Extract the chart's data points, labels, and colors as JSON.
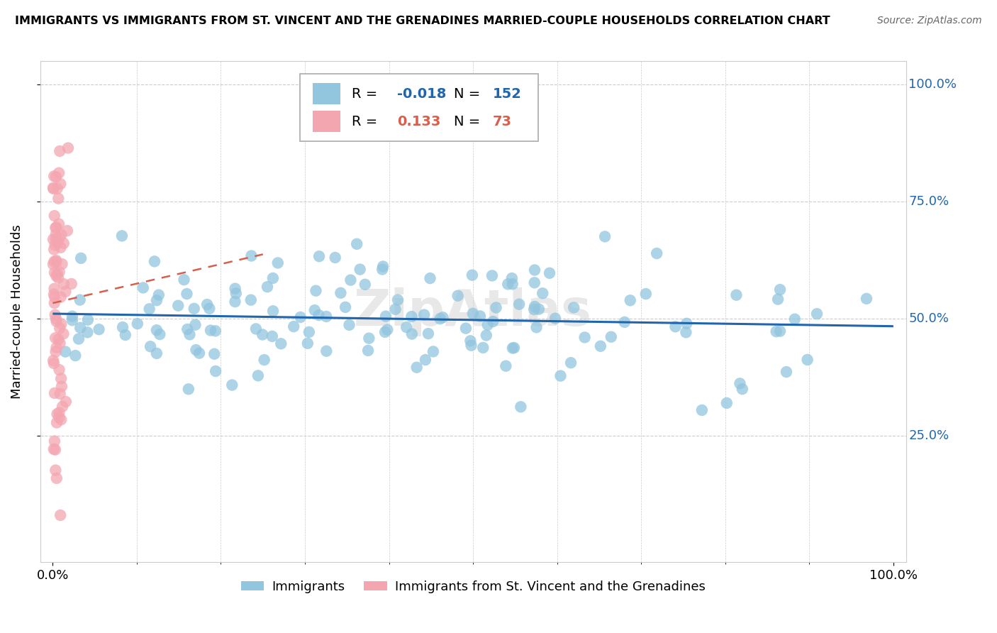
{
  "title": "IMMIGRANTS VS IMMIGRANTS FROM ST. VINCENT AND THE GRENADINES MARRIED-COUPLE HOUSEHOLDS CORRELATION CHART",
  "source": "Source: ZipAtlas.com",
  "ylabel": "Married-couple Households",
  "r_blue": -0.018,
  "n_blue": 152,
  "r_pink": 0.133,
  "n_pink": 73,
  "blue_color": "#92C5DE",
  "pink_color": "#F4A6B0",
  "blue_line_color": "#2166AC",
  "pink_line_color": "#D6604D",
  "right_label_color": "#2166AC",
  "grid_color": "#CCCCCC",
  "watermark": "ZipAtlas",
  "seed_blue": 42,
  "seed_pink": 99
}
